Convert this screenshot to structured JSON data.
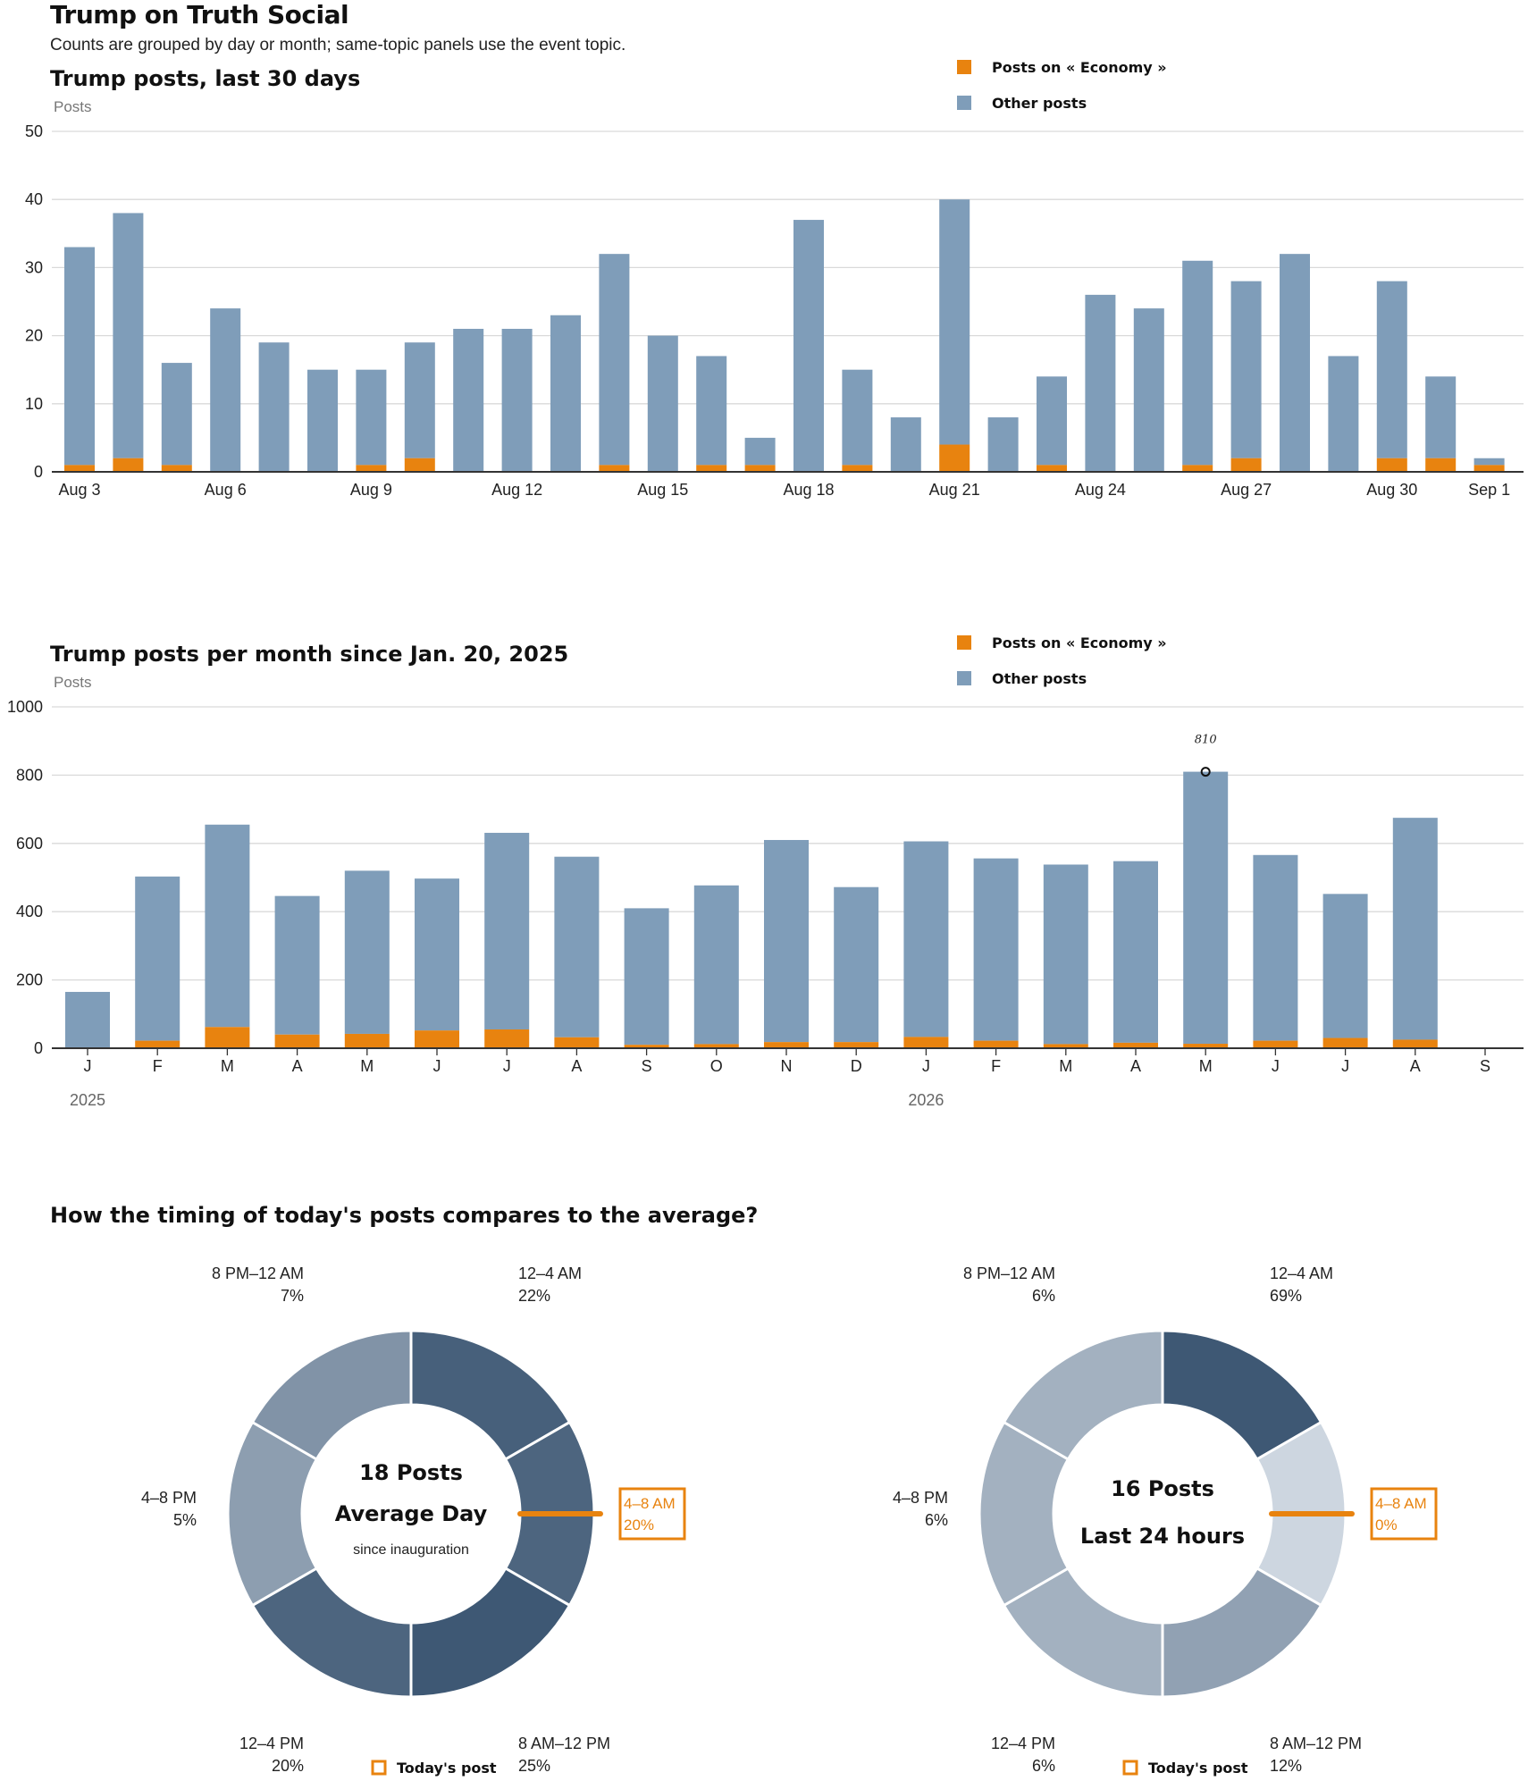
{
  "header": {
    "title": "Trump on Truth Social",
    "subtitle": "Counts are grouped by day or month; same-topic panels use the event topic."
  },
  "colors": {
    "topic": "#e8830f",
    "other": "#7f9db9",
    "grid": "#d9d9d9",
    "axis": "#333333"
  },
  "chart_data": [
    {
      "type": "bar",
      "stacked": true,
      "title": "Trump posts, last 30 days",
      "ylabel": "Posts",
      "ylim": [
        0,
        50
      ],
      "yticks": [
        0,
        10,
        20,
        30,
        40,
        50
      ],
      "legend": [
        "Posts on « Economy »",
        "Other posts"
      ],
      "legend_position": "top-right",
      "grid": true,
      "categories": [
        "Aug 3",
        "Aug 4",
        "Aug 5",
        "Aug 6",
        "Aug 7",
        "Aug 8",
        "Aug 9",
        "Aug 10",
        "Aug 11",
        "Aug 12",
        "Aug 13",
        "Aug 14",
        "Aug 15",
        "Aug 16",
        "Aug 17",
        "Aug 18",
        "Aug 19",
        "Aug 20",
        "Aug 21",
        "Aug 22",
        "Aug 23",
        "Aug 24",
        "Aug 25",
        "Aug 26",
        "Aug 27",
        "Aug 28",
        "Aug 29",
        "Aug 30",
        "Aug 31",
        "Sep 1"
      ],
      "tick_labels": [
        "Aug 3",
        "",
        "",
        "Aug 6",
        "",
        "",
        "Aug 9",
        "",
        "",
        "Aug 12",
        "",
        "",
        "Aug 15",
        "",
        "",
        "Aug 18",
        "",
        "",
        "Aug 21",
        "",
        "",
        "Aug 24",
        "",
        "",
        "Aug 27",
        "",
        "",
        "Aug 30",
        "",
        "Sep 1"
      ],
      "series": [
        {
          "name": "Posts on « Economy »",
          "values": [
            1,
            2,
            1,
            0,
            0,
            0,
            1,
            2,
            0,
            0,
            0,
            1,
            0,
            1,
            1,
            0,
            1,
            0,
            4,
            0,
            1,
            0,
            0,
            1,
            2,
            0,
            0,
            2,
            2,
            1
          ]
        },
        {
          "name": "Other posts",
          "values": [
            32,
            36,
            15,
            24,
            19,
            15,
            14,
            17,
            21,
            21,
            23,
            31,
            20,
            16,
            4,
            37,
            14,
            8,
            36,
            8,
            13,
            26,
            24,
            30,
            26,
            32,
            17,
            26,
            12,
            1
          ]
        }
      ]
    },
    {
      "type": "bar",
      "stacked": true,
      "title": "Trump posts per month since Jan. 20, 2025",
      "ylabel": "Posts",
      "ylim": [
        0,
        1000
      ],
      "yticks": [
        0,
        200,
        400,
        600,
        800,
        1000
      ],
      "legend": [
        "Posts on « Economy »",
        "Other posts"
      ],
      "legend_position": "top-right",
      "grid": true,
      "categories": [
        "J",
        "F",
        "M",
        "A",
        "M",
        "J",
        "J",
        "A",
        "S",
        "O",
        "N",
        "D",
        "J",
        "F",
        "M",
        "A",
        "M",
        "J",
        "J",
        "A",
        "S"
      ],
      "year_labels": [
        {
          "index": 0,
          "label": "2025"
        },
        {
          "index": 12,
          "label": "2026"
        }
      ],
      "annotation": {
        "index": 16,
        "label": "810"
      },
      "series": [
        {
          "name": "Posts on « Economy »",
          "values": [
            2,
            22,
            62,
            40,
            42,
            52,
            55,
            32,
            10,
            12,
            18,
            18,
            33,
            22,
            12,
            16,
            13,
            22,
            30,
            25,
            0
          ]
        },
        {
          "name": "Other posts",
          "values": [
            163,
            481,
            593,
            406,
            478,
            445,
            576,
            529,
            400,
            465,
            592,
            454,
            573,
            534,
            526,
            532,
            797,
            544,
            422,
            650,
            0
          ]
        }
      ]
    },
    {
      "type": "pie",
      "donut": true,
      "center_lines": [
        "18 Posts",
        "Average Day",
        "since inauguration"
      ],
      "categories": [
        "12–4 AM",
        "4–8 AM",
        "8 AM–12 PM",
        "12–4 PM",
        "4–8 PM",
        "8 PM–12 AM"
      ],
      "percent_labels": [
        "22%",
        "20%",
        "25%",
        "20%",
        "5%",
        "7%"
      ],
      "values": [
        22,
        20,
        25,
        20,
        5,
        7
      ],
      "highlight": {
        "category": "4–8 AM",
        "label": "4–8 AM",
        "percent": "20%"
      },
      "legend": "Today's post"
    },
    {
      "type": "pie",
      "donut": true,
      "center_lines": [
        "16 Posts",
        "Last 24 hours"
      ],
      "categories": [
        "12–4 AM",
        "4–8 AM",
        "8 AM–12 PM",
        "12–4 PM",
        "4–8 PM",
        "8 PM–12 AM"
      ],
      "percent_labels": [
        "69%",
        "0%",
        "12%",
        "6%",
        "6%",
        "6%"
      ],
      "values": [
        69,
        0,
        12,
        6,
        6,
        6
      ],
      "highlight": {
        "category": "4–8 AM",
        "label": "4–8 AM",
        "percent": "0%"
      },
      "legend": "Today's post"
    }
  ],
  "donut_section": {
    "title": "How the timing of today's posts compares to the average?"
  }
}
